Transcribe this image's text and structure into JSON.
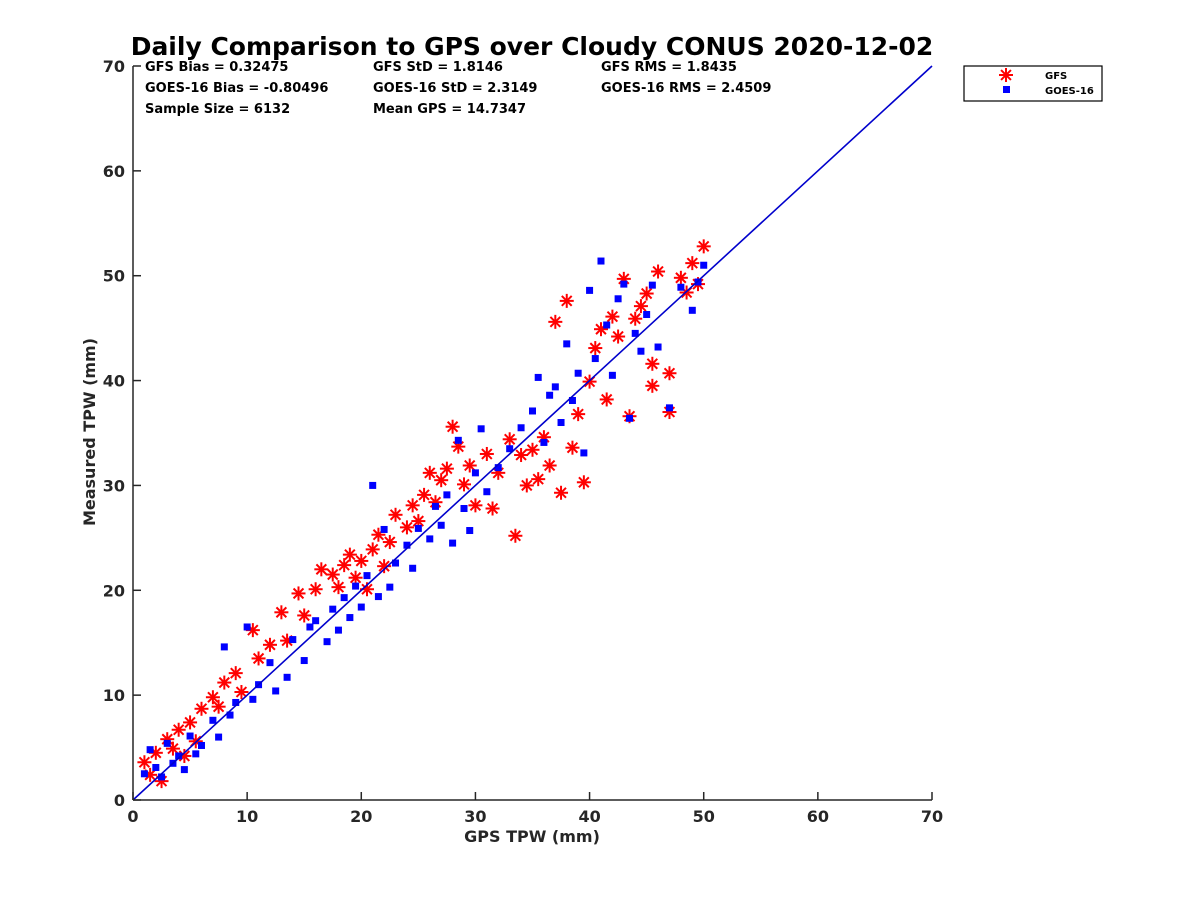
{
  "chart_data": {
    "type": "scatter",
    "title": "Daily Comparison to GPS over Cloudy CONUS 2020-12-02",
    "xlabel": "GPS TPW (mm)",
    "ylabel": "Measured TPW (mm)",
    "xlim": [
      0,
      70
    ],
    "ylim": [
      0,
      70
    ],
    "xticks": [
      0,
      10,
      20,
      30,
      40,
      50,
      60,
      70
    ],
    "yticks": [
      0,
      10,
      20,
      30,
      40,
      50,
      60,
      70
    ],
    "grid": false,
    "legend_position": "outside-top-right",
    "stats": [
      [
        "GFS Bias = 0.32475",
        "GFS StD = 1.8146",
        "GFS RMS = 1.8435"
      ],
      [
        "GOES-16 Bias = -0.80496",
        "GOES-16 StD = 2.3149",
        "GOES-16 RMS = 2.4509"
      ],
      [
        "Sample Size = 6132",
        "Mean GPS = 14.7347",
        ""
      ]
    ],
    "reference_line": {
      "x": [
        0,
        70
      ],
      "y": [
        0,
        70
      ],
      "color": "#0000cc"
    },
    "series": [
      {
        "name": "GFS",
        "marker": "asterisk",
        "color": "#ff0000",
        "points": [
          [
            1.0,
            3.6
          ],
          [
            1.5,
            2.4
          ],
          [
            2.0,
            4.5
          ],
          [
            2.5,
            1.8
          ],
          [
            3.0,
            5.8
          ],
          [
            3.5,
            4.9
          ],
          [
            4.0,
            6.7
          ],
          [
            4.5,
            4.2
          ],
          [
            5.0,
            7.4
          ],
          [
            5.5,
            5.6
          ],
          [
            6.0,
            8.7
          ],
          [
            7.0,
            9.8
          ],
          [
            7.5,
            8.9
          ],
          [
            8.0,
            11.2
          ],
          [
            9.0,
            12.1
          ],
          [
            9.5,
            10.3
          ],
          [
            10.5,
            16.2
          ],
          [
            11.0,
            13.5
          ],
          [
            12.0,
            14.8
          ],
          [
            13.0,
            17.9
          ],
          [
            13.5,
            15.2
          ],
          [
            14.5,
            19.7
          ],
          [
            15.0,
            17.6
          ],
          [
            16.0,
            20.1
          ],
          [
            16.5,
            22.0
          ],
          [
            17.5,
            21.5
          ],
          [
            18.0,
            20.3
          ],
          [
            18.5,
            22.4
          ],
          [
            19.0,
            23.4
          ],
          [
            19.5,
            21.2
          ],
          [
            20.0,
            22.8
          ],
          [
            20.5,
            20.1
          ],
          [
            21.0,
            23.9
          ],
          [
            21.5,
            25.3
          ],
          [
            22.0,
            22.3
          ],
          [
            22.5,
            24.6
          ],
          [
            23.0,
            27.2
          ],
          [
            24.0,
            26.0
          ],
          [
            24.5,
            28.1
          ],
          [
            25.0,
            26.6
          ],
          [
            25.5,
            29.1
          ],
          [
            26.0,
            31.2
          ],
          [
            26.5,
            28.4
          ],
          [
            27.0,
            30.5
          ],
          [
            27.5,
            31.6
          ],
          [
            28.0,
            35.6
          ],
          [
            28.5,
            33.7
          ],
          [
            29.0,
            30.1
          ],
          [
            29.5,
            31.9
          ],
          [
            30.0,
            28.1
          ],
          [
            31.0,
            33.0
          ],
          [
            31.5,
            27.8
          ],
          [
            32.0,
            31.2
          ],
          [
            33.0,
            34.4
          ],
          [
            33.5,
            25.2
          ],
          [
            34.0,
            32.9
          ],
          [
            34.5,
            30.0
          ],
          [
            35.0,
            33.4
          ],
          [
            35.5,
            30.6
          ],
          [
            36.0,
            34.6
          ],
          [
            36.5,
            31.9
          ],
          [
            37.0,
            45.6
          ],
          [
            37.5,
            29.3
          ],
          [
            38.0,
            47.6
          ],
          [
            38.5,
            33.6
          ],
          [
            39.0,
            36.8
          ],
          [
            39.5,
            30.3
          ],
          [
            40.0,
            39.9
          ],
          [
            40.5,
            43.1
          ],
          [
            41.0,
            44.9
          ],
          [
            41.5,
            38.2
          ],
          [
            42.0,
            46.1
          ],
          [
            42.5,
            44.2
          ],
          [
            43.0,
            49.7
          ],
          [
            43.5,
            36.6
          ],
          [
            44.0,
            45.9
          ],
          [
            44.5,
            47.1
          ],
          [
            45.0,
            48.3
          ],
          [
            45.5,
            41.6
          ],
          [
            45.5,
            39.5
          ],
          [
            46.0,
            50.4
          ],
          [
            47.0,
            40.7
          ],
          [
            47.0,
            37.0
          ],
          [
            48.0,
            49.8
          ],
          [
            48.5,
            48.4
          ],
          [
            49.0,
            51.2
          ],
          [
            49.5,
            49.2
          ],
          [
            50.0,
            52.8
          ]
        ]
      },
      {
        "name": "GOES-16",
        "marker": "square",
        "color": "#0000ff",
        "points": [
          [
            1.0,
            2.5
          ],
          [
            1.5,
            4.8
          ],
          [
            2.0,
            3.1
          ],
          [
            2.5,
            2.2
          ],
          [
            3.0,
            5.4
          ],
          [
            3.5,
            3.5
          ],
          [
            4.0,
            4.2
          ],
          [
            4.5,
            2.9
          ],
          [
            5.0,
            6.1
          ],
          [
            5.5,
            4.4
          ],
          [
            6.0,
            5.2
          ],
          [
            7.0,
            7.6
          ],
          [
            7.5,
            6.0
          ],
          [
            8.0,
            14.6
          ],
          [
            8.5,
            8.1
          ],
          [
            9.0,
            9.3
          ],
          [
            10.0,
            16.5
          ],
          [
            10.5,
            9.6
          ],
          [
            11.0,
            11.0
          ],
          [
            12.0,
            13.1
          ],
          [
            12.5,
            10.4
          ],
          [
            13.5,
            11.7
          ],
          [
            14.0,
            15.3
          ],
          [
            15.0,
            13.3
          ],
          [
            15.5,
            16.5
          ],
          [
            16.0,
            17.1
          ],
          [
            17.0,
            15.1
          ],
          [
            17.5,
            18.2
          ],
          [
            18.0,
            16.2
          ],
          [
            18.5,
            19.3
          ],
          [
            19.0,
            17.4
          ],
          [
            19.5,
            20.4
          ],
          [
            20.0,
            18.4
          ],
          [
            20.5,
            21.4
          ],
          [
            21.0,
            30.0
          ],
          [
            21.5,
            19.4
          ],
          [
            22.0,
            25.8
          ],
          [
            22.5,
            20.3
          ],
          [
            23.0,
            22.6
          ],
          [
            24.0,
            24.3
          ],
          [
            24.5,
            22.1
          ],
          [
            25.0,
            25.9
          ],
          [
            26.0,
            24.9
          ],
          [
            26.5,
            28.0
          ],
          [
            27.0,
            26.2
          ],
          [
            27.5,
            29.1
          ],
          [
            28.0,
            24.5
          ],
          [
            28.5,
            34.3
          ],
          [
            29.0,
            27.8
          ],
          [
            29.5,
            25.7
          ],
          [
            30.0,
            31.2
          ],
          [
            30.5,
            35.4
          ],
          [
            31.0,
            29.4
          ],
          [
            32.0,
            31.7
          ],
          [
            33.0,
            33.5
          ],
          [
            34.0,
            35.5
          ],
          [
            35.0,
            37.1
          ],
          [
            35.5,
            40.3
          ],
          [
            36.0,
            34.1
          ],
          [
            36.5,
            38.6
          ],
          [
            37.0,
            39.4
          ],
          [
            37.5,
            36.0
          ],
          [
            38.0,
            43.5
          ],
          [
            38.5,
            38.1
          ],
          [
            39.0,
            40.7
          ],
          [
            39.5,
            33.1
          ],
          [
            40.0,
            48.6
          ],
          [
            40.5,
            42.1
          ],
          [
            41.0,
            51.4
          ],
          [
            41.5,
            45.3
          ],
          [
            42.0,
            40.5
          ],
          [
            42.5,
            47.8
          ],
          [
            43.0,
            49.2
          ],
          [
            43.5,
            36.4
          ],
          [
            44.0,
            44.5
          ],
          [
            44.5,
            42.8
          ],
          [
            45.0,
            46.3
          ],
          [
            45.5,
            49.1
          ],
          [
            46.0,
            43.2
          ],
          [
            47.0,
            37.4
          ],
          [
            48.0,
            48.9
          ],
          [
            49.0,
            46.7
          ],
          [
            49.5,
            49.4
          ],
          [
            50.0,
            51.0
          ]
        ]
      }
    ]
  }
}
